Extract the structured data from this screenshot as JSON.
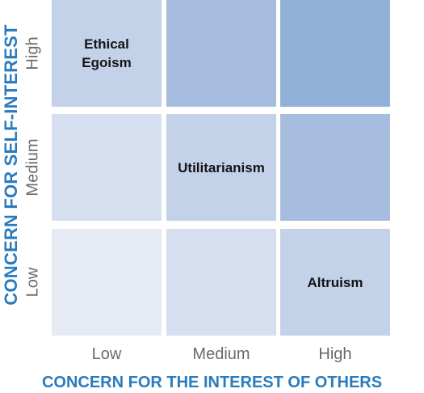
{
  "y_axis": {
    "title": "CONCERN FOR SELF-INTEREST",
    "ticks": [
      "High",
      "Medium",
      "Low"
    ]
  },
  "x_axis": {
    "title": "CONCERN FOR THE INTEREST OF OTHERS",
    "ticks": [
      "Low",
      "Medium",
      "High"
    ]
  },
  "cells": [
    [
      {
        "label": "Ethical\nEgoism",
        "color": "#c3d1e9"
      },
      {
        "label": "",
        "color": "#a7bde0"
      },
      {
        "label": "",
        "color": "#91b0d8"
      }
    ],
    [
      {
        "label": "",
        "color": "#d5dff0"
      },
      {
        "label": "Utilitarianism",
        "color": "#c3d1e9"
      },
      {
        "label": "",
        "color": "#a7bde0"
      }
    ],
    [
      {
        "label": "",
        "color": "#e5eaf5"
      },
      {
        "label": "",
        "color": "#d5dff0"
      },
      {
        "label": "Altruism",
        "color": "#c3d1e9"
      }
    ]
  ]
}
